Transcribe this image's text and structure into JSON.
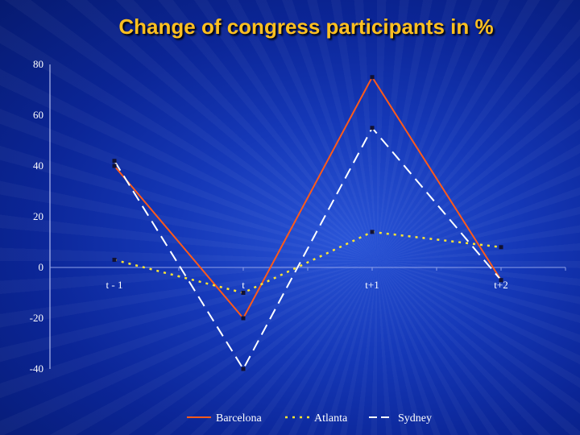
{
  "chart_data": {
    "type": "line",
    "title": "Change of congress participants in %",
    "categories": [
      "t - 1",
      "t",
      "t+1",
      "t+2"
    ],
    "series": [
      {
        "name": "Barcelona",
        "values": [
          40,
          -20,
          75,
          -5
        ],
        "color": "#ff5a1a",
        "dash": "solid"
      },
      {
        "name": "Atlanta",
        "values": [
          3,
          -10,
          14,
          8
        ],
        "color": "#ffe633",
        "dash": "dotted"
      },
      {
        "name": "Sydney",
        "values": [
          42,
          -40,
          55,
          -5
        ],
        "color": "#ffffff",
        "dash": "dashed"
      }
    ],
    "yticks": [
      80,
      60,
      40,
      20,
      0,
      -20,
      -40
    ],
    "ylim": [
      -40,
      80
    ],
    "legend_position": "bottom-center",
    "grid": false
  }
}
